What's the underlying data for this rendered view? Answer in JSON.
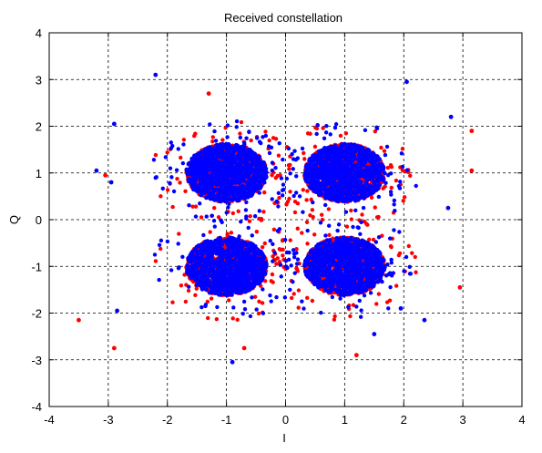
{
  "chart_data": {
    "type": "scatter",
    "title": "Received constellation",
    "xlabel": "I",
    "ylabel": "Q",
    "xlim": [
      -4,
      4
    ],
    "ylim": [
      -4,
      4
    ],
    "xticks": [
      -4,
      -3,
      -2,
      -1,
      0,
      1,
      2,
      3,
      4
    ],
    "yticks": [
      -4,
      -3,
      -2,
      -1,
      0,
      1,
      2,
      3,
      4
    ],
    "xtick_labels": [
      "-4",
      "-3",
      "-2",
      "-1",
      "0",
      "1",
      "2",
      "3",
      "4"
    ],
    "ytick_labels": [
      "-4",
      "-3",
      "-2",
      "-1",
      "0",
      "1",
      "2",
      "3",
      "4"
    ],
    "grid": true,
    "legend": false,
    "clusters": [
      {
        "center": [
          -1,
          1
        ]
      },
      {
        "center": [
          1,
          1
        ]
      },
      {
        "center": [
          -1,
          -1
        ]
      },
      {
        "center": [
          1,
          -1
        ]
      }
    ],
    "series": [
      {
        "color": "#ff0000",
        "outliers": [
          [
            -3.5,
            -2.15
          ],
          [
            -2.9,
            -2.75
          ],
          [
            -3.05,
            0.95
          ],
          [
            3.15,
            1.05
          ],
          [
            3.15,
            1.9
          ],
          [
            2.95,
            -1.45
          ],
          [
            -1.3,
            2.7
          ],
          [
            1.2,
            -2.9
          ],
          [
            -0.7,
            -2.75
          ]
        ]
      },
      {
        "color": "#0000ff",
        "outliers": [
          [
            -3.2,
            1.05
          ],
          [
            -2.9,
            2.05
          ],
          [
            -2.95,
            0.8
          ],
          [
            -2.2,
            3.1
          ],
          [
            2.05,
            2.95
          ],
          [
            2.8,
            2.2
          ],
          [
            2.75,
            0.25
          ],
          [
            2.35,
            -2.15
          ],
          [
            -0.9,
            -3.05
          ],
          [
            -2.85,
            -1.95
          ],
          [
            1.95,
            -1.9
          ],
          [
            1.5,
            -2.45
          ]
        ]
      }
    ]
  }
}
